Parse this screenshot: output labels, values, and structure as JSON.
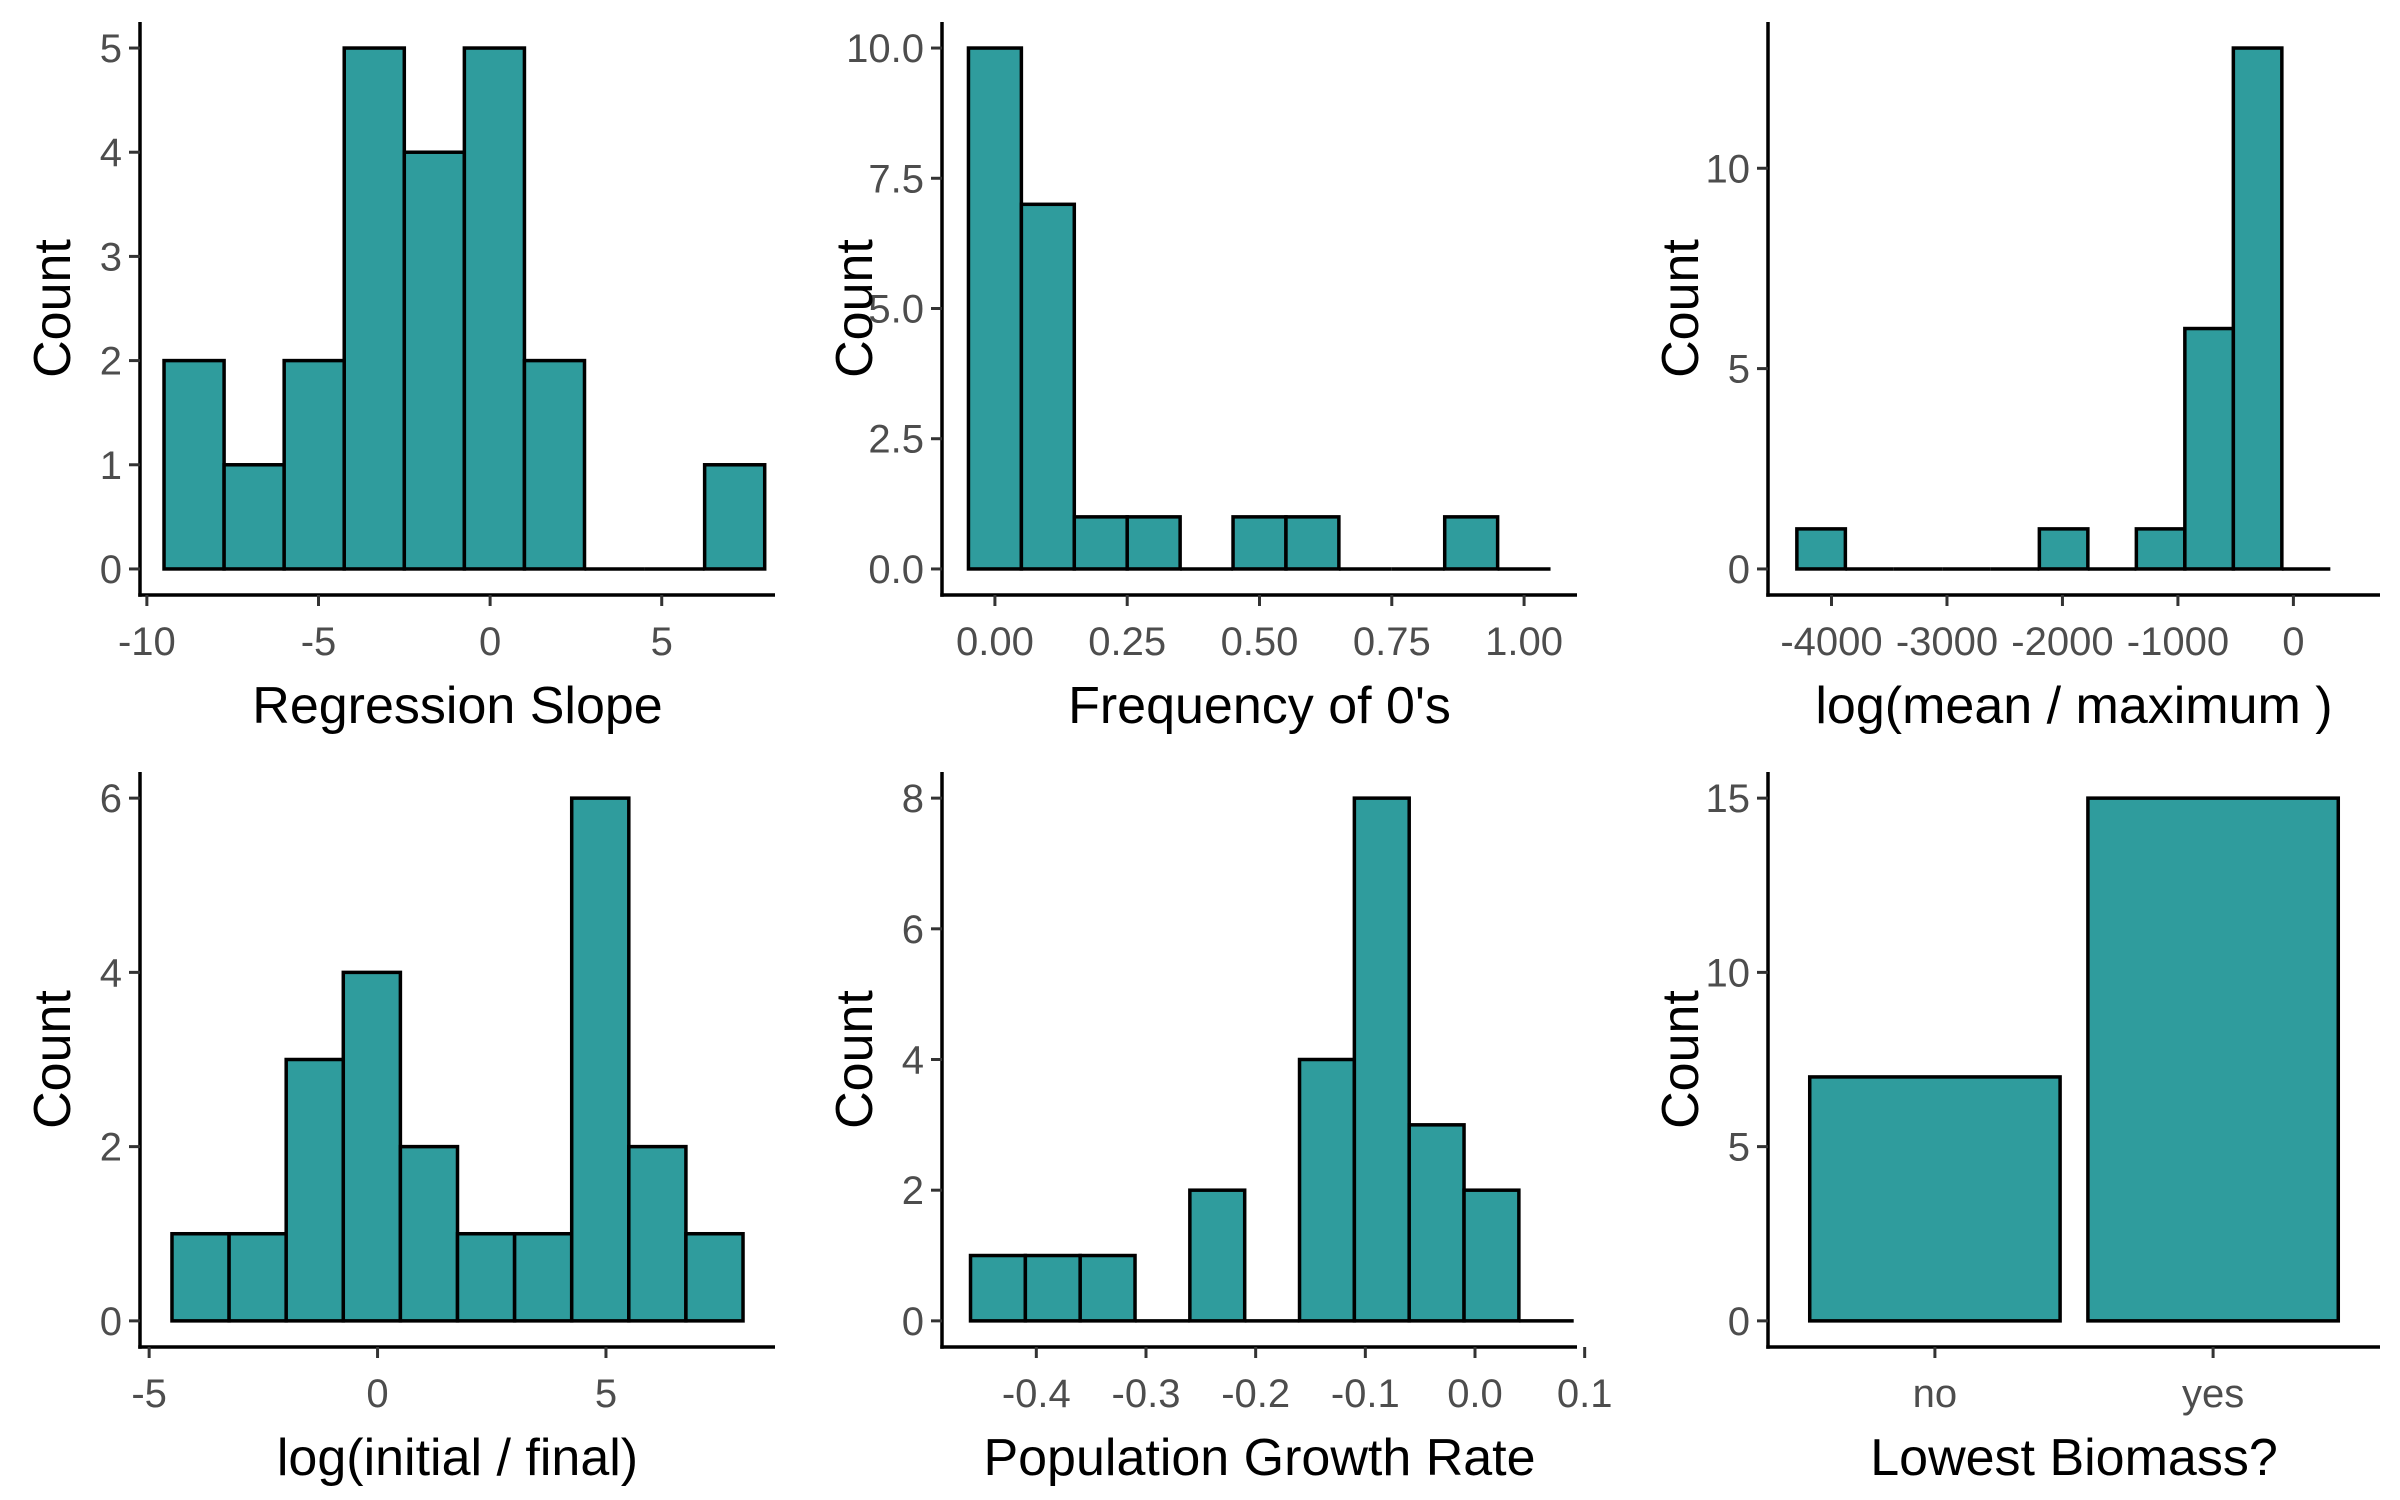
{
  "chart_data": [
    {
      "type": "bar",
      "xlabel": "Regression Slope",
      "ylabel": "Count",
      "bins": [
        [
          -9.5,
          -7.75
        ],
        [
          -7.75,
          -6.0
        ],
        [
          -6.0,
          -4.25
        ],
        [
          -4.25,
          -2.5
        ],
        [
          -2.5,
          -0.75
        ],
        [
          -0.75,
          1.0
        ],
        [
          1.0,
          2.75
        ],
        [
          2.75,
          4.5
        ],
        [
          4.5,
          6.25
        ],
        [
          6.25,
          8.0
        ]
      ],
      "values": [
        2,
        1,
        2,
        5,
        4,
        5,
        2,
        0,
        0,
        1
      ],
      "xlim": [
        -10.2,
        8.3
      ],
      "ylim": [
        -0.25,
        5.25
      ],
      "xticks": [
        -10,
        -5,
        0,
        5
      ],
      "xtick_labels": [
        "-10",
        "-5",
        "0",
        "5"
      ],
      "yticks": [
        0,
        1,
        2,
        3,
        4,
        5
      ],
      "ytick_labels": [
        "0",
        "1",
        "2",
        "3",
        "4",
        "5"
      ]
    },
    {
      "type": "bar",
      "xlabel": "Frequency of 0's",
      "ylabel": "Count",
      "bins": [
        [
          -0.05,
          0.05
        ],
        [
          0.05,
          0.15
        ],
        [
          0.15,
          0.25
        ],
        [
          0.25,
          0.35
        ],
        [
          0.35,
          0.45
        ],
        [
          0.45,
          0.55
        ],
        [
          0.55,
          0.65
        ],
        [
          0.65,
          0.75
        ],
        [
          0.75,
          0.85
        ],
        [
          0.85,
          0.95
        ],
        [
          0.95,
          1.05
        ]
      ],
      "values": [
        10,
        7,
        1,
        1,
        0,
        1,
        1,
        0,
        0,
        1,
        0
      ],
      "xlim": [
        -0.1,
        1.1
      ],
      "ylim": [
        -0.5,
        10.5
      ],
      "xticks": [
        0,
        0.25,
        0.5,
        0.75,
        1.0
      ],
      "xtick_labels": [
        "0.00",
        "0.25",
        "0.50",
        "0.75",
        "1.00"
      ],
      "yticks": [
        0,
        2.5,
        5,
        7.5,
        10
      ],
      "ytick_labels": [
        "0.0",
        "2.5",
        "5.0",
        "7.5",
        "10.0"
      ]
    },
    {
      "type": "bar",
      "xlabel": "log(mean / maximum )",
      "ylabel": "Count",
      "bins": [
        [
          -4300,
          -3880
        ],
        [
          -3880,
          -3460
        ],
        [
          -3460,
          -3040
        ],
        [
          -3040,
          -2620
        ],
        [
          -2620,
          -2200
        ],
        [
          -2200,
          -1780
        ],
        [
          -1780,
          -1360
        ],
        [
          -1360,
          -940
        ],
        [
          -940,
          -520
        ],
        [
          -520,
          -100
        ],
        [
          -100,
          320
        ]
      ],
      "values": [
        1,
        0,
        0,
        0,
        0,
        1,
        0,
        1,
        6,
        13,
        0
      ],
      "xlim": [
        -4550,
        750
      ],
      "ylim": [
        -0.65,
        13.65
      ],
      "xticks": [
        -4000,
        -3000,
        -2000,
        -1000,
        0
      ],
      "xtick_labels": [
        "-4000",
        "-3000",
        "-2000",
        "-1000",
        "0"
      ],
      "yticks": [
        0,
        5,
        10
      ],
      "ytick_labels": [
        "0",
        "5",
        "10"
      ]
    },
    {
      "type": "bar",
      "xlabel": "log(initial / final)",
      "ylabel": "Count",
      "bins": [
        [
          -4.5,
          -3.25
        ],
        [
          -3.25,
          -2.0
        ],
        [
          -2.0,
          -0.75
        ],
        [
          -0.75,
          0.5
        ],
        [
          0.5,
          1.75
        ],
        [
          1.75,
          3.0
        ],
        [
          3.0,
          4.25
        ],
        [
          4.25,
          5.5
        ],
        [
          5.5,
          6.75
        ],
        [
          6.75,
          8.0
        ]
      ],
      "values": [
        1,
        1,
        3,
        4,
        2,
        1,
        1,
        6,
        2,
        1
      ],
      "xlim": [
        -5.2,
        8.7
      ],
      "ylim": [
        -0.3,
        6.3
      ],
      "xticks": [
        -5,
        0,
        5
      ],
      "xtick_labels": [
        "-5",
        "0",
        "5"
      ],
      "yticks": [
        0,
        2,
        4,
        6
      ],
      "ytick_labels": [
        "0",
        "2",
        "4",
        "6"
      ]
    },
    {
      "type": "bar",
      "xlabel": "Population Growth Rate",
      "ylabel": "Count",
      "bins": [
        [
          -0.46,
          -0.41
        ],
        [
          -0.41,
          -0.36
        ],
        [
          -0.36,
          -0.31
        ],
        [
          -0.31,
          -0.26
        ],
        [
          -0.26,
          -0.21
        ],
        [
          -0.21,
          -0.16
        ],
        [
          -0.16,
          -0.11
        ],
        [
          -0.11,
          -0.06
        ],
        [
          -0.06,
          -0.01
        ],
        [
          -0.01,
          0.04
        ],
        [
          0.04,
          0.09
        ]
      ],
      "values": [
        1,
        1,
        1,
        0,
        2,
        0,
        4,
        8,
        3,
        2,
        0
      ],
      "xlim": [
        -0.486,
        0.093
      ],
      "ylim": [
        -0.4,
        8.4
      ],
      "xticks": [
        -0.4,
        -0.3,
        -0.2,
        -0.1,
        0.0,
        0.1
      ],
      "xtick_labels": [
        "-0.4",
        "-0.3",
        "-0.2",
        "-0.1",
        "0.0",
        "0.1"
      ],
      "yticks": [
        0,
        2,
        4,
        6,
        8
      ],
      "ytick_labels": [
        "0",
        "2",
        "4",
        "6",
        "8"
      ]
    },
    {
      "type": "bar",
      "xlabel": "Lowest Biomass?",
      "ylabel": "Count",
      "categories": [
        "no",
        "yes"
      ],
      "values": [
        7,
        15
      ],
      "xlim": [
        0.4,
        2.6
      ],
      "ylim": [
        -0.75,
        15.75
      ],
      "yticks": [
        0,
        5,
        10,
        15
      ],
      "ytick_labels": [
        "0",
        "5",
        "10",
        "15"
      ]
    }
  ]
}
